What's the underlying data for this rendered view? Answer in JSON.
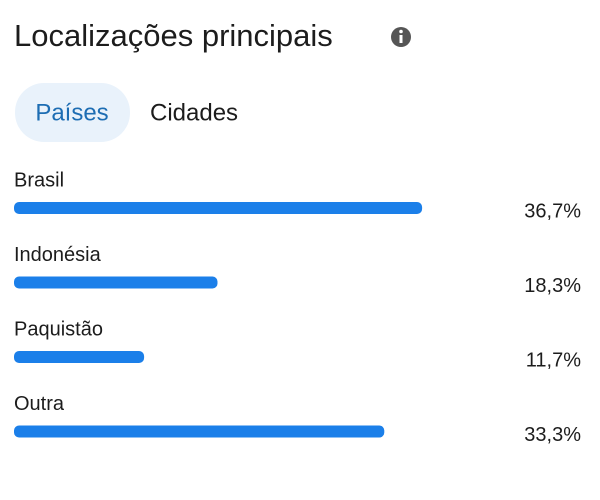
{
  "header": {
    "title": "Localizações principais"
  },
  "tabs": [
    "Países",
    "Cidades"
  ],
  "chart_data": {
    "type": "bar",
    "orientation": "horizontal",
    "color": "#1b7fe9",
    "categories": [
      "Brasil",
      "Indonésia",
      "Paquistão",
      "Outra"
    ],
    "values": [
      36.7,
      18.3,
      11.7,
      33.3
    ],
    "value_labels": [
      "36,7%",
      "18,3%",
      "11,7%",
      "33,3%"
    ]
  }
}
